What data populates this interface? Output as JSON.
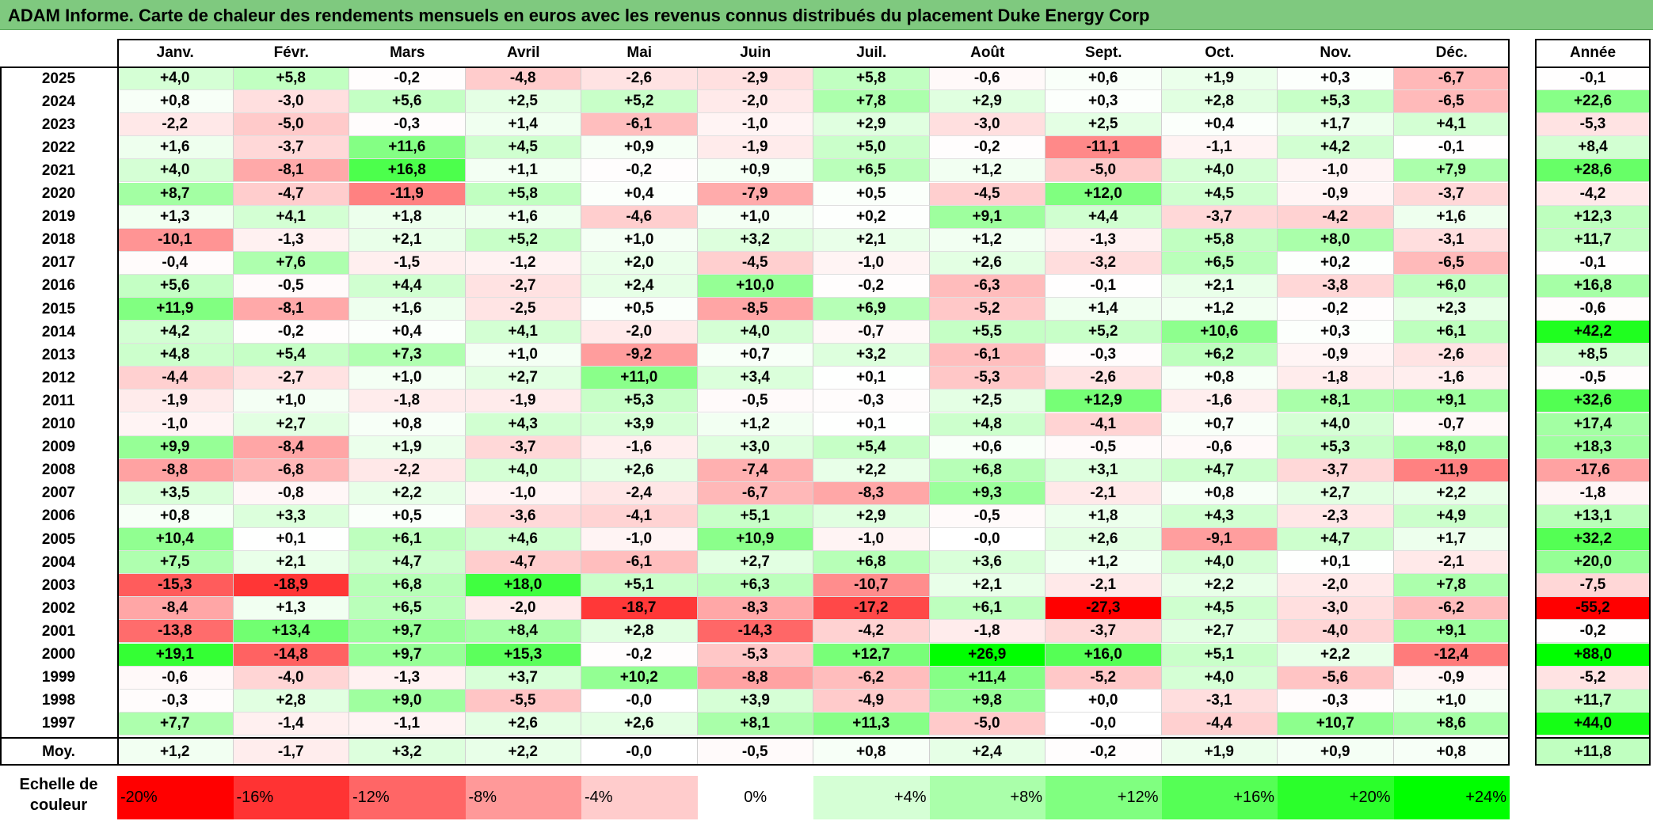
{
  "title": "ADAM Informe. Carte de chaleur des rendements mensuels en euros avec les revenus connus distribués du placement Duke Energy Corp",
  "chart_data": {
    "type": "heatmap",
    "months": [
      "Janv.",
      "Févr.",
      "Mars",
      "Avril",
      "Mai",
      "Juin",
      "Juil.",
      "Août",
      "Sept.",
      "Oct.",
      "Nov.",
      "Déc."
    ],
    "year_header": "Année",
    "rows": [
      {
        "year": "2025",
        "values": [
          "+4,0",
          "+5,8",
          "-0,2",
          "-4,8",
          "-2,6",
          "-2,9",
          "+5,8",
          "-0,6",
          "+0,6",
          "+1,9",
          "+0,3",
          "-6,7"
        ],
        "annual": "-0,1"
      },
      {
        "year": "2024",
        "values": [
          "+0,8",
          "-3,0",
          "+5,6",
          "+2,5",
          "+5,2",
          "-2,0",
          "+7,8",
          "+2,9",
          "+0,3",
          "+2,8",
          "+5,3",
          "-6,5"
        ],
        "annual": "+22,6"
      },
      {
        "year": "2023",
        "values": [
          "-2,2",
          "-5,0",
          "-0,3",
          "+1,4",
          "-6,1",
          "-1,0",
          "+2,9",
          "-3,0",
          "+2,5",
          "+0,4",
          "+1,7",
          "+4,1"
        ],
        "annual": "-5,3"
      },
      {
        "year": "2022",
        "values": [
          "+1,6",
          "-3,7",
          "+11,6",
          "+4,5",
          "+0,9",
          "-1,9",
          "+5,0",
          "-0,2",
          "-11,1",
          "-1,1",
          "+4,2",
          "-0,1"
        ],
        "annual": "+8,4"
      },
      {
        "year": "2021",
        "values": [
          "+4,0",
          "-8,1",
          "+16,8",
          "+1,1",
          "-0,2",
          "+0,9",
          "+6,5",
          "+1,2",
          "-5,0",
          "+4,0",
          "-1,0",
          "+7,9"
        ],
        "annual": "+28,6"
      },
      {
        "year": "2020",
        "values": [
          "+8,7",
          "-4,7",
          "-11,9",
          "+5,8",
          "+0,4",
          "-7,9",
          "+0,5",
          "-4,5",
          "+12,0",
          "+4,5",
          "-0,9",
          "-3,7"
        ],
        "annual": "-4,2"
      },
      {
        "year": "2019",
        "values": [
          "+1,3",
          "+4,1",
          "+1,8",
          "+1,6",
          "-4,6",
          "+1,0",
          "+0,2",
          "+9,1",
          "+4,4",
          "-3,7",
          "-4,2",
          "+1,6"
        ],
        "annual": "+12,3"
      },
      {
        "year": "2018",
        "values": [
          "-10,1",
          "-1,3",
          "+2,1",
          "+5,2",
          "+1,0",
          "+3,2",
          "+2,1",
          "+1,2",
          "-1,3",
          "+5,8",
          "+8,0",
          "-3,1"
        ],
        "annual": "+11,7"
      },
      {
        "year": "2017",
        "values": [
          "-0,4",
          "+7,6",
          "-1,5",
          "-1,2",
          "+2,0",
          "-4,5",
          "-1,0",
          "+2,6",
          "-3,2",
          "+6,5",
          "+0,2",
          "-6,5"
        ],
        "annual": "-0,1"
      },
      {
        "year": "2016",
        "values": [
          "+5,6",
          "-0,5",
          "+4,4",
          "-2,7",
          "+2,4",
          "+10,0",
          "-0,2",
          "-6,3",
          "-0,1",
          "+2,1",
          "-3,8",
          "+6,0"
        ],
        "annual": "+16,8"
      },
      {
        "year": "2015",
        "values": [
          "+11,9",
          "-8,1",
          "+1,6",
          "-2,5",
          "+0,5",
          "-8,5",
          "+6,9",
          "-5,2",
          "+1,4",
          "+1,2",
          "-0,2",
          "+2,3"
        ],
        "annual": "-0,6"
      },
      {
        "year": "2014",
        "values": [
          "+4,2",
          "-0,2",
          "+0,4",
          "+4,1",
          "-2,0",
          "+4,0",
          "-0,7",
          "+5,5",
          "+5,2",
          "+10,6",
          "+0,3",
          "+6,1"
        ],
        "annual": "+42,2"
      },
      {
        "year": "2013",
        "values": [
          "+4,8",
          "+5,4",
          "+7,3",
          "+1,0",
          "-9,2",
          "+0,7",
          "+3,2",
          "-6,1",
          "-0,3",
          "+6,2",
          "-0,9",
          "-2,6"
        ],
        "annual": "+8,5"
      },
      {
        "year": "2012",
        "values": [
          "-4,4",
          "-2,7",
          "+1,0",
          "+2,7",
          "+11,0",
          "+3,4",
          "+0,1",
          "-5,3",
          "-2,6",
          "+0,8",
          "-1,8",
          "-1,6"
        ],
        "annual": "-0,5"
      },
      {
        "year": "2011",
        "values": [
          "-1,9",
          "+1,0",
          "-1,8",
          "-1,9",
          "+5,3",
          "-0,5",
          "-0,3",
          "+2,5",
          "+12,9",
          "-1,6",
          "+8,1",
          "+9,1"
        ],
        "annual": "+32,6"
      },
      {
        "year": "2010",
        "values": [
          "-1,0",
          "+2,7",
          "+0,8",
          "+4,3",
          "+3,9",
          "+1,2",
          "+0,1",
          "+4,8",
          "-4,1",
          "+0,7",
          "+4,0",
          "-0,7"
        ],
        "annual": "+17,4"
      },
      {
        "year": "2009",
        "values": [
          "+9,9",
          "-8,4",
          "+1,9",
          "-3,7",
          "-1,6",
          "+3,0",
          "+5,4",
          "+0,6",
          "-0,5",
          "-0,6",
          "+5,3",
          "+8,0"
        ],
        "annual": "+18,3"
      },
      {
        "year": "2008",
        "values": [
          "-8,8",
          "-6,8",
          "-2,2",
          "+4,0",
          "+2,6",
          "-7,4",
          "+2,2",
          "+6,8",
          "+3,1",
          "+4,7",
          "-3,7",
          "-11,9"
        ],
        "annual": "-17,6"
      },
      {
        "year": "2007",
        "values": [
          "+3,5",
          "-0,8",
          "+2,2",
          "-1,0",
          "-2,4",
          "-6,7",
          "-8,3",
          "+9,3",
          "-2,1",
          "+0,8",
          "+2,7",
          "+2,2"
        ],
        "annual": "-1,8"
      },
      {
        "year": "2006",
        "values": [
          "+0,8",
          "+3,3",
          "+0,5",
          "-3,6",
          "-4,1",
          "+5,1",
          "+2,9",
          "-0,5",
          "+1,8",
          "+4,3",
          "-2,3",
          "+4,9"
        ],
        "annual": "+13,1"
      },
      {
        "year": "2005",
        "values": [
          "+10,4",
          "+0,1",
          "+6,1",
          "+4,6",
          "-1,0",
          "+10,9",
          "-1,0",
          "-0,0",
          "+2,6",
          "-9,1",
          "+4,7",
          "+1,7"
        ],
        "annual": "+32,2"
      },
      {
        "year": "2004",
        "values": [
          "+7,5",
          "+2,1",
          "+4,7",
          "-4,7",
          "-6,1",
          "+2,7",
          "+6,8",
          "+3,6",
          "+1,2",
          "+4,0",
          "+0,1",
          "-2,1"
        ],
        "annual": "+20,0"
      },
      {
        "year": "2003",
        "values": [
          "-15,3",
          "-18,9",
          "+6,8",
          "+18,0",
          "+5,1",
          "+6,3",
          "-10,7",
          "+2,1",
          "-2,1",
          "+2,2",
          "-2,0",
          "+7,8"
        ],
        "annual": "-7,5"
      },
      {
        "year": "2002",
        "values": [
          "-8,4",
          "+1,3",
          "+6,5",
          "-2,0",
          "-18,7",
          "-8,3",
          "-17,2",
          "+6,1",
          "-27,3",
          "+4,5",
          "-3,0",
          "-6,2"
        ],
        "annual": "-55,2"
      },
      {
        "year": "2001",
        "values": [
          "-13,8",
          "+13,4",
          "+9,7",
          "+8,4",
          "+2,8",
          "-14,3",
          "-4,2",
          "-1,8",
          "-3,7",
          "+2,7",
          "-4,0",
          "+9,1"
        ],
        "annual": "-0,2"
      },
      {
        "year": "2000",
        "values": [
          "+19,1",
          "-14,8",
          "+9,7",
          "+15,3",
          "-0,2",
          "-5,3",
          "+12,7",
          "+26,9",
          "+16,0",
          "+5,1",
          "+2,2",
          "-12,4"
        ],
        "annual": "+88,0"
      },
      {
        "year": "1999",
        "values": [
          "-0,6",
          "-4,0",
          "-1,3",
          "+3,7",
          "+10,2",
          "-8,8",
          "-6,2",
          "+11,4",
          "-5,2",
          "+4,0",
          "-5,6",
          "-0,9"
        ],
        "annual": "-5,2"
      },
      {
        "year": "1998",
        "values": [
          "-0,3",
          "+2,8",
          "+9,0",
          "-5,5",
          "-0,0",
          "+3,9",
          "-4,9",
          "+9,8",
          "+0,0",
          "-3,1",
          "-0,3",
          "+1,0"
        ],
        "annual": "+11,7"
      },
      {
        "year": "1997",
        "values": [
          "+7,7",
          "-1,4",
          "-1,1",
          "+2,6",
          "+2,6",
          "+8,1",
          "+11,3",
          "-5,0",
          "-0,0",
          "-4,4",
          "+10,7",
          "+8,6"
        ],
        "annual": "+44,0"
      }
    ],
    "average": {
      "label": "Moy.",
      "values": [
        "+1,2",
        "-1,7",
        "+3,2",
        "+2,2",
        "-0,0",
        "-0,5",
        "+0,8",
        "+2,4",
        "-0,2",
        "+1,9",
        "+0,9",
        "+0,8"
      ],
      "annual": "+11,8"
    },
    "legend": {
      "label": "Echelle de couleur",
      "steps": [
        {
          "text": "-20%",
          "value": -20,
          "color": "#ff0000"
        },
        {
          "text": "-16%",
          "value": -16,
          "color": "#ff3333"
        },
        {
          "text": "-12%",
          "value": -12,
          "color": "#ff6666"
        },
        {
          "text": "-8%",
          "value": -8,
          "color": "#ff9999"
        },
        {
          "text": "-4%",
          "value": -4,
          "color": "#ffcccc"
        },
        {
          "text": "0%",
          "value": 0,
          "color": "#ffffff"
        },
        {
          "text": "+4%",
          "value": 4,
          "color": "#d5ffd5"
        },
        {
          "text": "+8%",
          "value": 8,
          "color": "#aaffaa"
        },
        {
          "text": "+12%",
          "value": 12,
          "color": "#80ff80"
        },
        {
          "text": "+16%",
          "value": 16,
          "color": "#55ff55"
        },
        {
          "text": "+20%",
          "value": 20,
          "color": "#2bff2b"
        },
        {
          "text": "+24%",
          "value": 24,
          "color": "#00ff00"
        }
      ]
    },
    "colors": {
      "negative_max": "#ff0000",
      "neutral": "#ffffff",
      "positive_max": "#00ff00",
      "title_bar": "#7fc97f"
    }
  }
}
